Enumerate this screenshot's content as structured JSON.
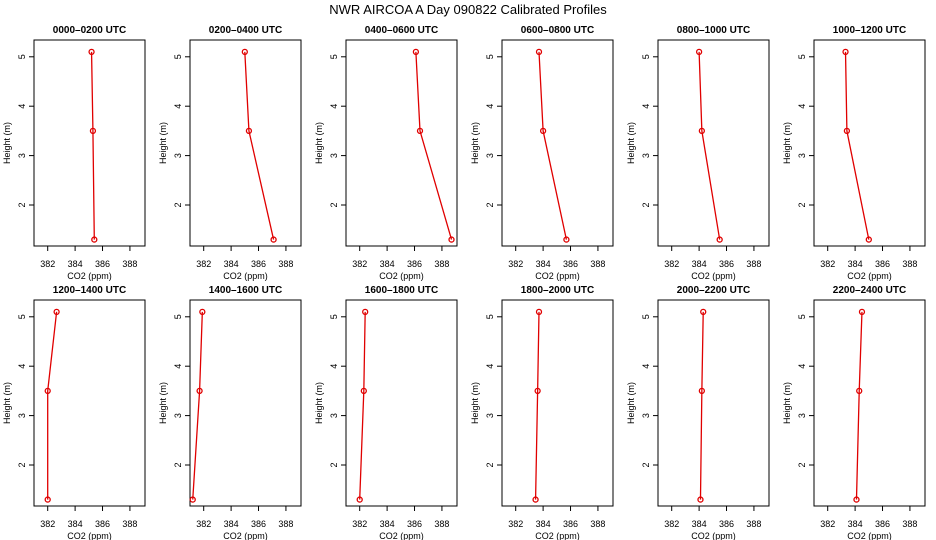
{
  "title": "NWR AIRCOA A  Day 090822  Calibrated Profiles",
  "chart_data": [
    {
      "type": "line",
      "title": "0000–0200 UTC",
      "xlabel": "CO2 (ppm)",
      "ylabel": "Height (m)",
      "color": "#e00000",
      "x": [
        385.4,
        385.3,
        385.2
      ],
      "values": [
        1.3,
        3.5,
        5.1
      ],
      "xlim": [
        381,
        389.1
      ],
      "ylim": [
        1.17,
        5.34
      ],
      "xticks": [
        382,
        384,
        386,
        388
      ],
      "yticks": [
        2,
        3,
        4,
        5
      ]
    },
    {
      "type": "line",
      "title": "0200–0400 UTC",
      "xlabel": "CO2 (ppm)",
      "ylabel": "Height (m)",
      "color": "#e00000",
      "x": [
        387.1,
        385.3,
        385.0
      ],
      "values": [
        1.3,
        3.5,
        5.1
      ],
      "xlim": [
        381,
        389.1
      ],
      "ylim": [
        1.17,
        5.34
      ],
      "xticks": [
        382,
        384,
        386,
        388
      ],
      "yticks": [
        2,
        3,
        4,
        5
      ]
    },
    {
      "type": "line",
      "title": "0400–0600 UTC",
      "xlabel": "CO2 (ppm)",
      "ylabel": "Height (m)",
      "color": "#e00000",
      "x": [
        388.7,
        386.4,
        386.1
      ],
      "values": [
        1.3,
        3.5,
        5.1
      ],
      "xlim": [
        381,
        389.1
      ],
      "ylim": [
        1.17,
        5.34
      ],
      "xticks": [
        382,
        384,
        386,
        388
      ],
      "yticks": [
        2,
        3,
        4,
        5
      ]
    },
    {
      "type": "line",
      "title": "0600–0800 UTC",
      "xlabel": "CO2 (ppm)",
      "ylabel": "Height (m)",
      "color": "#e00000",
      "x": [
        385.7,
        384.0,
        383.7
      ],
      "values": [
        1.3,
        3.5,
        5.1
      ],
      "xlim": [
        381,
        389.1
      ],
      "ylim": [
        1.17,
        5.34
      ],
      "xticks": [
        382,
        384,
        386,
        388
      ],
      "yticks": [
        2,
        3,
        4,
        5
      ]
    },
    {
      "type": "line",
      "title": "0800–1000 UTC",
      "xlabel": "CO2 (ppm)",
      "ylabel": "Height (m)",
      "color": "#e00000",
      "x": [
        385.5,
        384.2,
        384.0
      ],
      "values": [
        1.3,
        3.5,
        5.1
      ],
      "xlim": [
        381,
        389.1
      ],
      "ylim": [
        1.17,
        5.34
      ],
      "xticks": [
        382,
        384,
        386,
        388
      ],
      "yticks": [
        2,
        3,
        4,
        5
      ]
    },
    {
      "type": "line",
      "title": "1000–1200 UTC",
      "xlabel": "CO2 (ppm)",
      "ylabel": "Height (m)",
      "color": "#e00000",
      "x": [
        385.0,
        383.4,
        383.3
      ],
      "values": [
        1.3,
        3.5,
        5.1
      ],
      "xlim": [
        381,
        389.1
      ],
      "ylim": [
        1.17,
        5.34
      ],
      "xticks": [
        382,
        384,
        386,
        388
      ],
      "yticks": [
        2,
        3,
        4,
        5
      ]
    },
    {
      "type": "line",
      "title": "1200–1400 UTC",
      "xlabel": "CO2 (ppm)",
      "ylabel": "Height (m)",
      "color": "#e00000",
      "x": [
        382.0,
        382.0,
        382.65
      ],
      "values": [
        1.3,
        3.5,
        5.1
      ],
      "xlim": [
        381,
        389.1
      ],
      "ylim": [
        1.17,
        5.34
      ],
      "xticks": [
        382,
        384,
        386,
        388
      ],
      "yticks": [
        2,
        3,
        4,
        5
      ]
    },
    {
      "type": "line",
      "title": "1400–1600 UTC",
      "xlabel": "CO2 (ppm)",
      "ylabel": "Height (m)",
      "color": "#e00000",
      "x": [
        381.2,
        381.7,
        381.9
      ],
      "values": [
        1.3,
        3.5,
        5.1
      ],
      "xlim": [
        381,
        389.1
      ],
      "ylim": [
        1.17,
        5.34
      ],
      "xticks": [
        382,
        384,
        386,
        388
      ],
      "yticks": [
        2,
        3,
        4,
        5
      ]
    },
    {
      "type": "line",
      "title": "1600–1800 UTC",
      "xlabel": "CO2 (ppm)",
      "ylabel": "Height (m)",
      "color": "#e00000",
      "x": [
        382.0,
        382.3,
        382.4
      ],
      "values": [
        1.3,
        3.5,
        5.1
      ],
      "xlim": [
        381,
        389.1
      ],
      "ylim": [
        1.17,
        5.34
      ],
      "xticks": [
        382,
        384,
        386,
        388
      ],
      "yticks": [
        2,
        3,
        4,
        5
      ]
    },
    {
      "type": "line",
      "title": "1800–2000 UTC",
      "xlabel": "CO2 (ppm)",
      "ylabel": "Height (m)",
      "color": "#e00000",
      "x": [
        383.45,
        383.6,
        383.7
      ],
      "values": [
        1.3,
        3.5,
        5.1
      ],
      "xlim": [
        381,
        389.1
      ],
      "ylim": [
        1.17,
        5.34
      ],
      "xticks": [
        382,
        384,
        386,
        388
      ],
      "yticks": [
        2,
        3,
        4,
        5
      ]
    },
    {
      "type": "line",
      "title": "2000–2200 UTC",
      "xlabel": "CO2 (ppm)",
      "ylabel": "Height (m)",
      "color": "#e00000",
      "x": [
        384.1,
        384.2,
        384.3
      ],
      "values": [
        1.3,
        3.5,
        5.1
      ],
      "xlim": [
        381,
        389.1
      ],
      "ylim": [
        1.17,
        5.34
      ],
      "xticks": [
        382,
        384,
        386,
        388
      ],
      "yticks": [
        2,
        3,
        4,
        5
      ]
    },
    {
      "type": "line",
      "title": "2200–2400 UTC",
      "xlabel": "CO2 (ppm)",
      "ylabel": "Height (m)",
      "color": "#e00000",
      "x": [
        384.1,
        384.3,
        384.5
      ],
      "values": [
        1.3,
        3.5,
        5.1
      ],
      "xlim": [
        381,
        389.1
      ],
      "ylim": [
        1.17,
        5.34
      ],
      "xticks": [
        382,
        384,
        386,
        388
      ],
      "yticks": [
        2,
        3,
        4,
        5
      ]
    }
  ]
}
